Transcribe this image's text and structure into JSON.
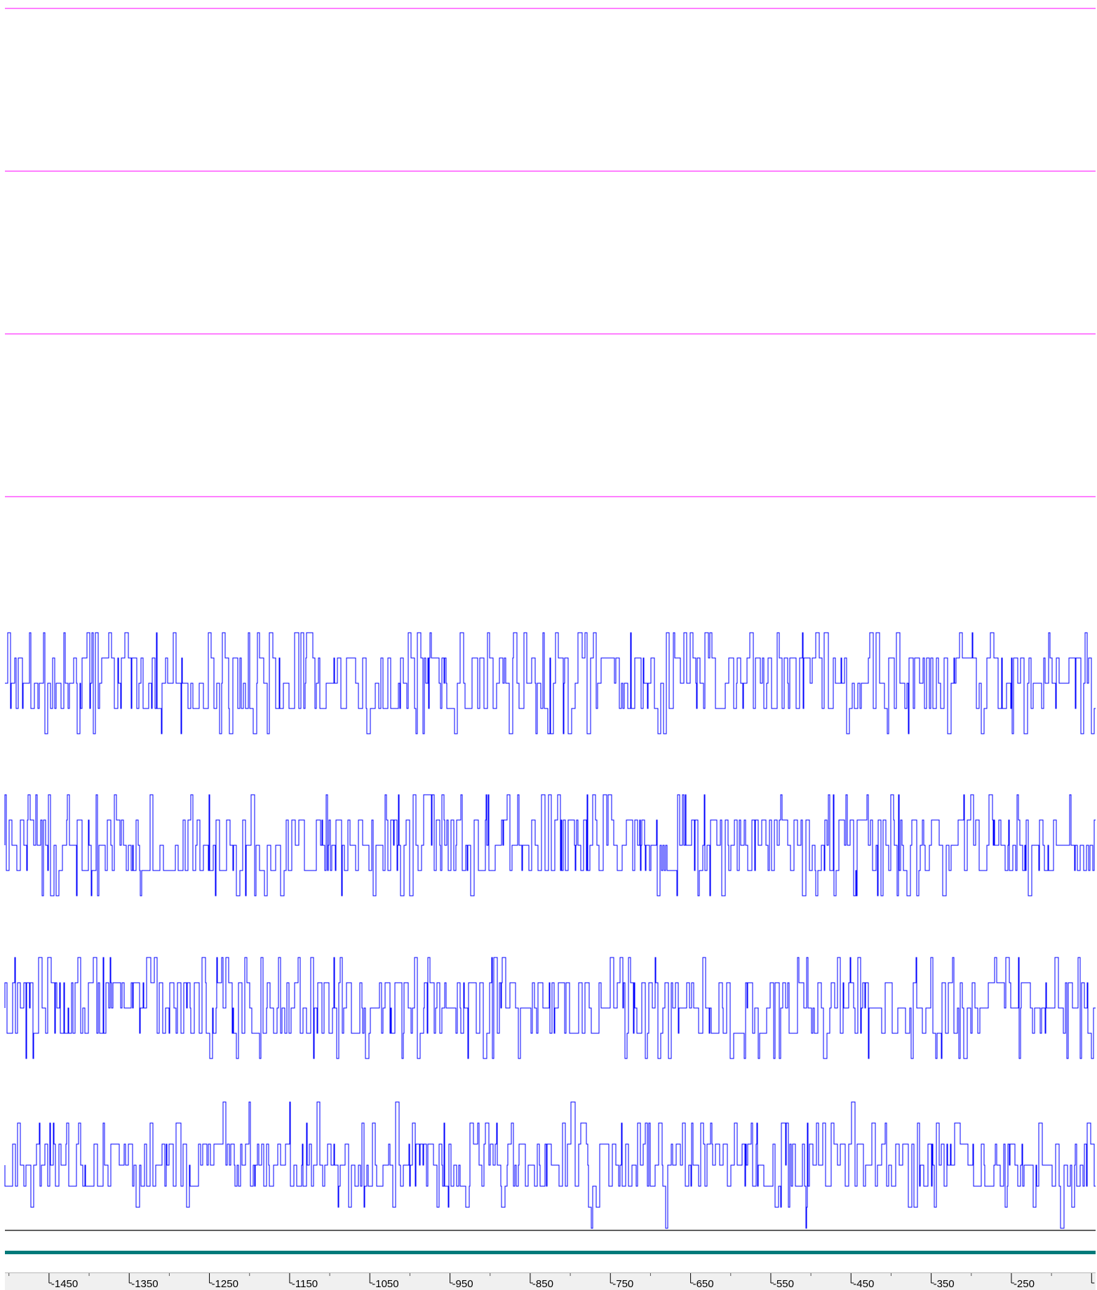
{
  "colors": {
    "flat_track": "#ff00ff",
    "signal_track": "#0000ff",
    "separator": "#000000",
    "band": "#007a7a",
    "ruler_bg": "#f0f0f0"
  },
  "chart_data": {
    "type": "line",
    "title": "",
    "xlabel": "",
    "ylabel": "",
    "xlim": [
      -1505,
      -145
    ],
    "x_axis_reversed": false,
    "grid": false,
    "legend": "none",
    "flat_tracks": [
      {
        "y": 0
      },
      {
        "y": 0
      },
      {
        "y": 0
      },
      {
        "y": 0
      }
    ],
    "signal_tracks": [
      {
        "baseline": 0,
        "levels": [
          -2,
          -1,
          0,
          1,
          2
        ],
        "value_range": [
          -2,
          2
        ],
        "seed": 11
      },
      {
        "baseline": 0,
        "levels": [
          -2,
          -1,
          0,
          1,
          2
        ],
        "value_range": [
          -2,
          2
        ],
        "seed": 29
      },
      {
        "baseline": 0,
        "levels": [
          -2,
          -1,
          0,
          1,
          2
        ],
        "value_range": [
          -2,
          2
        ],
        "seed": 47
      },
      {
        "baseline": 0,
        "levels": [
          -3,
          -2,
          -1,
          0,
          1,
          2,
          3
        ],
        "value_range": [
          -3,
          3
        ],
        "seed": 83
      }
    ],
    "x_ticks": [
      {
        "label": "-1450",
        "value": -1450
      },
      {
        "label": "-1350",
        "value": -1350
      },
      {
        "label": "-1250",
        "value": -1250
      },
      {
        "label": "-1150",
        "value": -1150
      },
      {
        "label": "-1050",
        "value": -1050
      },
      {
        "label": "-950",
        "value": -950
      },
      {
        "label": "-850",
        "value": -850
      },
      {
        "label": "-750",
        "value": -750
      },
      {
        "label": "-650",
        "value": -650
      },
      {
        "label": "-550",
        "value": -550
      },
      {
        "label": "-450",
        "value": -450
      },
      {
        "label": "-350",
        "value": -350
      },
      {
        "label": "-250",
        "value": -250
      },
      {
        "label": "",
        "value": -150
      }
    ]
  }
}
